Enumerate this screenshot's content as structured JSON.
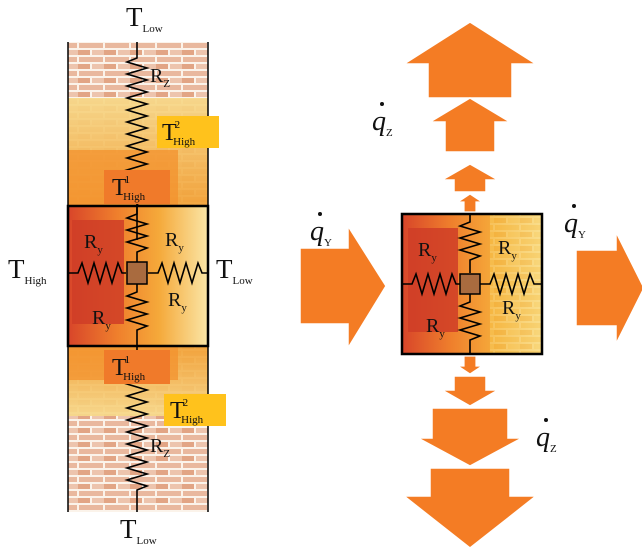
{
  "colors": {
    "brick_light": "#f3e6d6",
    "brick_mortar": "#fbf3ea",
    "brick_red": "#d9896a",
    "wall_yellow": "#f7c84c",
    "wall_orange": "#f3a233",
    "wall_deep": "#e4702a",
    "wall_red": "#d9502b",
    "badge_yellow": "#ffc21c",
    "badge_orange": "#f07a2a",
    "arrow_fill": "#f47c24",
    "arrow_stroke": "#ffffff",
    "node_fill": "#a96b3f",
    "line": "#000000"
  },
  "left": {
    "top_T": {
      "main": "T",
      "sub": "Low"
    },
    "bottom_T": {
      "main": "T",
      "sub": "Low"
    },
    "left_T": {
      "main": "T",
      "sub": "High"
    },
    "right_T": {
      "main": "T",
      "sub": "Low"
    },
    "R_z_top": {
      "main": "R",
      "sub": "Z"
    },
    "R_z_bottom": {
      "main": "R",
      "sub": "Z"
    },
    "T2_top": {
      "main": "T",
      "sub": "High",
      "sup": "2"
    },
    "T1_top": {
      "main": "T",
      "sub": "High",
      "sup": "1"
    },
    "T1_bottom": {
      "main": "T",
      "sub": "High",
      "sup": "1"
    },
    "T2_bottom": {
      "main": "T",
      "sub": "High",
      "sup": "2"
    },
    "R_y_tl": {
      "main": "R",
      "sub": "y"
    },
    "R_y_tr": {
      "main": "R",
      "sub": "y"
    },
    "R_y_rr": {
      "main": "R",
      "sub": "y"
    },
    "R_y_bl": {
      "main": "R",
      "sub": "y"
    }
  },
  "right": {
    "q_y_left": {
      "main": "q",
      "sub": "Y"
    },
    "q_y_right": {
      "main": "q",
      "sub": "Y"
    },
    "q_z_top": {
      "main": "q",
      "sub": "Z"
    },
    "q_z_bottom": {
      "main": "q",
      "sub": "Z"
    },
    "R_y_tl": {
      "main": "R",
      "sub": "y"
    },
    "R_y_tr": {
      "main": "R",
      "sub": "y"
    },
    "R_y_rr": {
      "main": "R",
      "sub": "y"
    },
    "R_y_bl": {
      "main": "R",
      "sub": "y"
    }
  }
}
